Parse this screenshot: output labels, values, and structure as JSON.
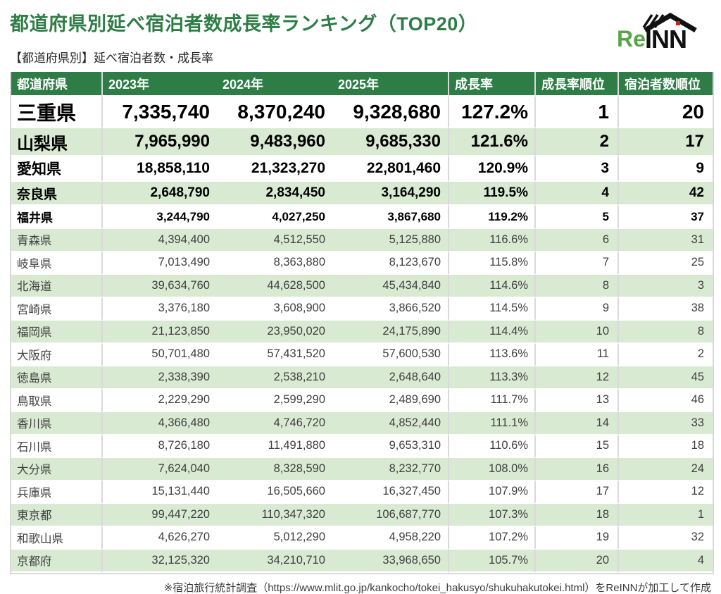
{
  "page": {
    "title": "都道府県別延べ宿泊者数成長率ランキング（TOP20）",
    "subtitle": "【都道府県別】延べ宿泊者数・成長率",
    "source_note": "※宿泊旅行統計調査（https://www.mlit.go.jp/kankocho/tokei_hakusyo/shukuhakutokei.html）をReINNが加工して作成"
  },
  "logo": {
    "re": "Re",
    "inn": "INN"
  },
  "colors": {
    "accent_green": "#2e7d46",
    "header_bg": "#2e7d46",
    "row_alt_bg": "#d9ead3",
    "grid": "#d9d9d9",
    "logo_green": "#56a649",
    "logo_black": "#111111",
    "logo_red": "#c0281f"
  },
  "table": {
    "headers": [
      "都道府県",
      "2023年",
      "2024年",
      "2025年",
      "成長率",
      "成長率順位",
      "宿泊者数順位"
    ]
  },
  "chart_data": {
    "type": "table",
    "title": "都道府県別延べ宿泊者数成長率ランキング（TOP20）",
    "columns": [
      "都道府県",
      "2023年",
      "2024年",
      "2025年",
      "成長率",
      "成長率順位",
      "宿泊者数順位"
    ],
    "rows": [
      [
        "三重県",
        7335740,
        8370240,
        9328680,
        "127.2%",
        1,
        20
      ],
      [
        "山梨県",
        7965990,
        9483960,
        9685330,
        "121.6%",
        2,
        17
      ],
      [
        "愛知県",
        18858110,
        21323270,
        22801460,
        "120.9%",
        3,
        9
      ],
      [
        "奈良県",
        2648790,
        2834450,
        3164290,
        "119.5%",
        4,
        42
      ],
      [
        "福井県",
        3244790,
        4027250,
        3867680,
        "119.2%",
        5,
        37
      ],
      [
        "青森県",
        4394400,
        4512550,
        5125880,
        "116.6%",
        6,
        31
      ],
      [
        "岐阜県",
        7013490,
        8363880,
        8123670,
        "115.8%",
        7,
        25
      ],
      [
        "北海道",
        39634760,
        44628500,
        45434840,
        "114.6%",
        8,
        3
      ],
      [
        "宮崎県",
        3376180,
        3608900,
        3866520,
        "114.5%",
        9,
        38
      ],
      [
        "福岡県",
        21123850,
        23950020,
        24175890,
        "114.4%",
        10,
        8
      ],
      [
        "大阪府",
        50701480,
        57431520,
        57600530,
        "113.6%",
        11,
        2
      ],
      [
        "徳島県",
        2338390,
        2538210,
        2648640,
        "113.3%",
        12,
        45
      ],
      [
        "鳥取県",
        2229290,
        2599290,
        2489690,
        "111.7%",
        13,
        46
      ],
      [
        "香川県",
        4366480,
        4746720,
        4852440,
        "111.1%",
        14,
        33
      ],
      [
        "石川県",
        8726180,
        11491880,
        9653310,
        "110.6%",
        15,
        18
      ],
      [
        "大分県",
        7624040,
        8328590,
        8232770,
        "108.0%",
        16,
        24
      ],
      [
        "兵庫県",
        15131440,
        16505660,
        16327450,
        "107.9%",
        17,
        12
      ],
      [
        "東京都",
        99447220,
        110347320,
        106687770,
        "107.3%",
        18,
        1
      ],
      [
        "和歌山県",
        4626270,
        5012290,
        4958220,
        "107.2%",
        19,
        32
      ],
      [
        "京都府",
        32125320,
        34210710,
        33968650,
        "105.7%",
        20,
        4
      ]
    ]
  }
}
